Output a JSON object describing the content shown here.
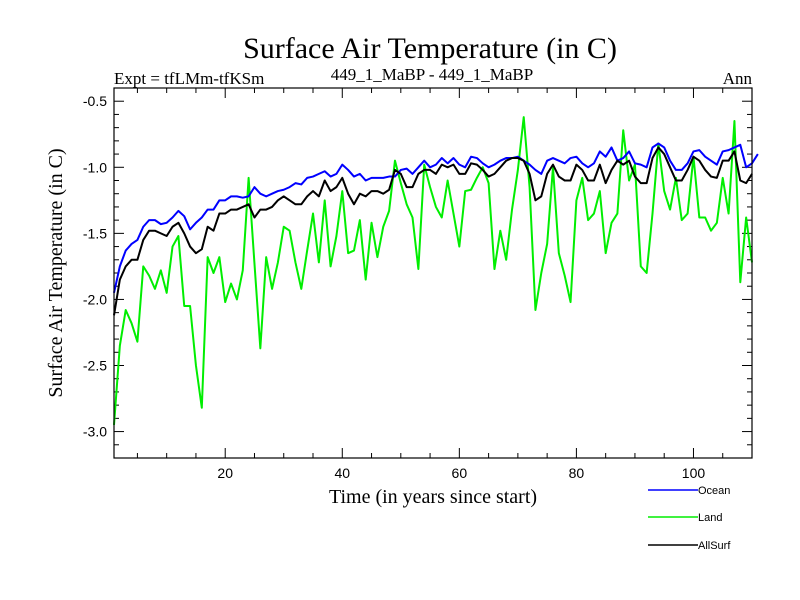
{
  "chart_data": {
    "type": "line",
    "title": "Surface Air Temperature (in C)",
    "subtitle_left": "Expt = tfLMm-tfKSm",
    "subtitle_center": "449_1_MaBP - 449_1_MaBP",
    "subtitle_right": "Ann",
    "xlabel": "Time (in years since start)",
    "ylabel": "Surface Air Temperature (in C)",
    "xlim": [
      1,
      110
    ],
    "ylim": [
      -3.2,
      -0.4
    ],
    "xticks": [
      20,
      40,
      60,
      80,
      100
    ],
    "xtick_labels": [
      "20",
      "40",
      "60",
      "80",
      "100"
    ],
    "yticks": [
      -3.0,
      -2.5,
      -2.0,
      -1.5,
      -1.0,
      -0.5
    ],
    "ytick_labels": [
      "-3.0",
      "-2.5",
      "-2.0",
      "-1.5",
      "-1.0",
      "-0.5"
    ],
    "x_start": 1,
    "series": [
      {
        "name": "Ocean",
        "color": "#0000ff",
        "values": [
          -1.95,
          -1.75,
          -1.63,
          -1.58,
          -1.55,
          -1.45,
          -1.4,
          -1.4,
          -1.43,
          -1.42,
          -1.38,
          -1.33,
          -1.37,
          -1.47,
          -1.42,
          -1.38,
          -1.32,
          -1.32,
          -1.25,
          -1.25,
          -1.22,
          -1.22,
          -1.23,
          -1.22,
          -1.15,
          -1.2,
          -1.22,
          -1.2,
          -1.18,
          -1.17,
          -1.15,
          -1.12,
          -1.13,
          -1.08,
          -1.07,
          -1.05,
          -1.03,
          -1.07,
          -1.05,
          -0.98,
          -1.02,
          -1.07,
          -1.05,
          -1.1,
          -1.08,
          -1.08,
          -1.08,
          -1.07,
          -1.07,
          -1.02,
          -1.01,
          -1.05,
          -1.0,
          -0.95,
          -1.0,
          -0.98,
          -0.93,
          -0.97,
          -0.93,
          -0.98,
          -1.0,
          -0.92,
          -0.93,
          -0.97,
          -1.0,
          -0.98,
          -0.95,
          -0.93,
          -0.93,
          -0.92,
          -0.95,
          -0.98,
          -1.02,
          -1.05,
          -0.95,
          -0.93,
          -0.95,
          -0.97,
          -0.93,
          -0.92,
          -0.97,
          -1.0,
          -0.97,
          -0.88,
          -0.92,
          -0.85,
          -0.95,
          -0.93,
          -0.88,
          -0.97,
          -0.98,
          -1.0,
          -0.85,
          -0.82,
          -0.85,
          -0.95,
          -1.02,
          -1.02,
          -0.97,
          -0.88,
          -0.87,
          -0.92,
          -0.95,
          -0.98,
          -0.88,
          -0.87,
          -0.85,
          -0.83,
          -1.0,
          -0.97,
          -0.9
        ]
      },
      {
        "name": "Land",
        "color": "#00ee00",
        "values": [
          -2.95,
          -2.35,
          -2.08,
          -2.18,
          -2.32,
          -1.75,
          -1.82,
          -1.92,
          -1.78,
          -1.95,
          -1.6,
          -1.52,
          -2.05,
          -2.05,
          -2.5,
          -2.82,
          -1.68,
          -1.8,
          -1.68,
          -2.02,
          -1.88,
          -2.0,
          -1.78,
          -1.08,
          -1.73,
          -2.37,
          -1.68,
          -1.92,
          -1.72,
          -1.45,
          -1.48,
          -1.72,
          -1.92,
          -1.63,
          -1.35,
          -1.72,
          -1.25,
          -1.75,
          -1.52,
          -1.18,
          -1.65,
          -1.63,
          -1.4,
          -1.85,
          -1.42,
          -1.68,
          -1.45,
          -1.33,
          -0.95,
          -1.12,
          -1.28,
          -1.38,
          -1.77,
          -0.98,
          -1.15,
          -1.3,
          -1.38,
          -1.1,
          -1.35,
          -1.6,
          -1.18,
          -1.17,
          -1.08,
          -1.0,
          -1.12,
          -1.77,
          -1.48,
          -1.7,
          -1.32,
          -1.02,
          -0.62,
          -1.15,
          -2.08,
          -1.8,
          -1.58,
          -1.0,
          -1.65,
          -1.82,
          -2.02,
          -1.25,
          -1.08,
          -1.4,
          -1.35,
          -1.18,
          -1.65,
          -1.42,
          -1.35,
          -0.72,
          -1.1,
          -0.98,
          -1.75,
          -1.8,
          -1.35,
          -0.82,
          -1.18,
          -1.32,
          -1.08,
          -1.4,
          -1.35,
          -0.92,
          -1.38,
          -1.38,
          -1.48,
          -1.42,
          -1.08,
          -1.35,
          -0.65,
          -1.87,
          -1.38,
          -1.72
        ]
      },
      {
        "name": "AllSurf",
        "color": "#000000",
        "values": [
          -2.12,
          -1.85,
          -1.75,
          -1.7,
          -1.7,
          -1.55,
          -1.48,
          -1.48,
          -1.5,
          -1.52,
          -1.45,
          -1.42,
          -1.5,
          -1.6,
          -1.65,
          -1.62,
          -1.45,
          -1.48,
          -1.35,
          -1.35,
          -1.32,
          -1.32,
          -1.3,
          -1.28,
          -1.38,
          -1.32,
          -1.32,
          -1.3,
          -1.25,
          -1.22,
          -1.25,
          -1.28,
          -1.28,
          -1.22,
          -1.18,
          -1.22,
          -1.1,
          -1.18,
          -1.15,
          -1.08,
          -1.2,
          -1.28,
          -1.2,
          -1.22,
          -1.18,
          -1.18,
          -1.2,
          -1.17,
          -1.02,
          -1.05,
          -1.15,
          -1.15,
          -1.05,
          -1.02,
          -1.02,
          -1.05,
          -0.98,
          -1.0,
          -0.98,
          -1.05,
          -1.05,
          -0.97,
          -0.98,
          -1.02,
          -1.07,
          -1.05,
          -1.0,
          -0.95,
          -0.93,
          -0.93,
          -0.95,
          -1.05,
          -1.25,
          -1.22,
          -1.05,
          -0.98,
          -1.07,
          -1.1,
          -1.1,
          -0.98,
          -1.02,
          -1.1,
          -1.1,
          -0.98,
          -1.12,
          -1.02,
          -0.95,
          -0.98,
          -0.95,
          -1.07,
          -1.12,
          -1.12,
          -0.93,
          -0.85,
          -0.9,
          -1.0,
          -1.1,
          -1.1,
          -1.02,
          -0.92,
          -0.95,
          -1.02,
          -1.07,
          -1.08,
          -0.95,
          -0.95,
          -0.88,
          -1.1,
          -1.12,
          -1.05
        ]
      }
    ]
  }
}
